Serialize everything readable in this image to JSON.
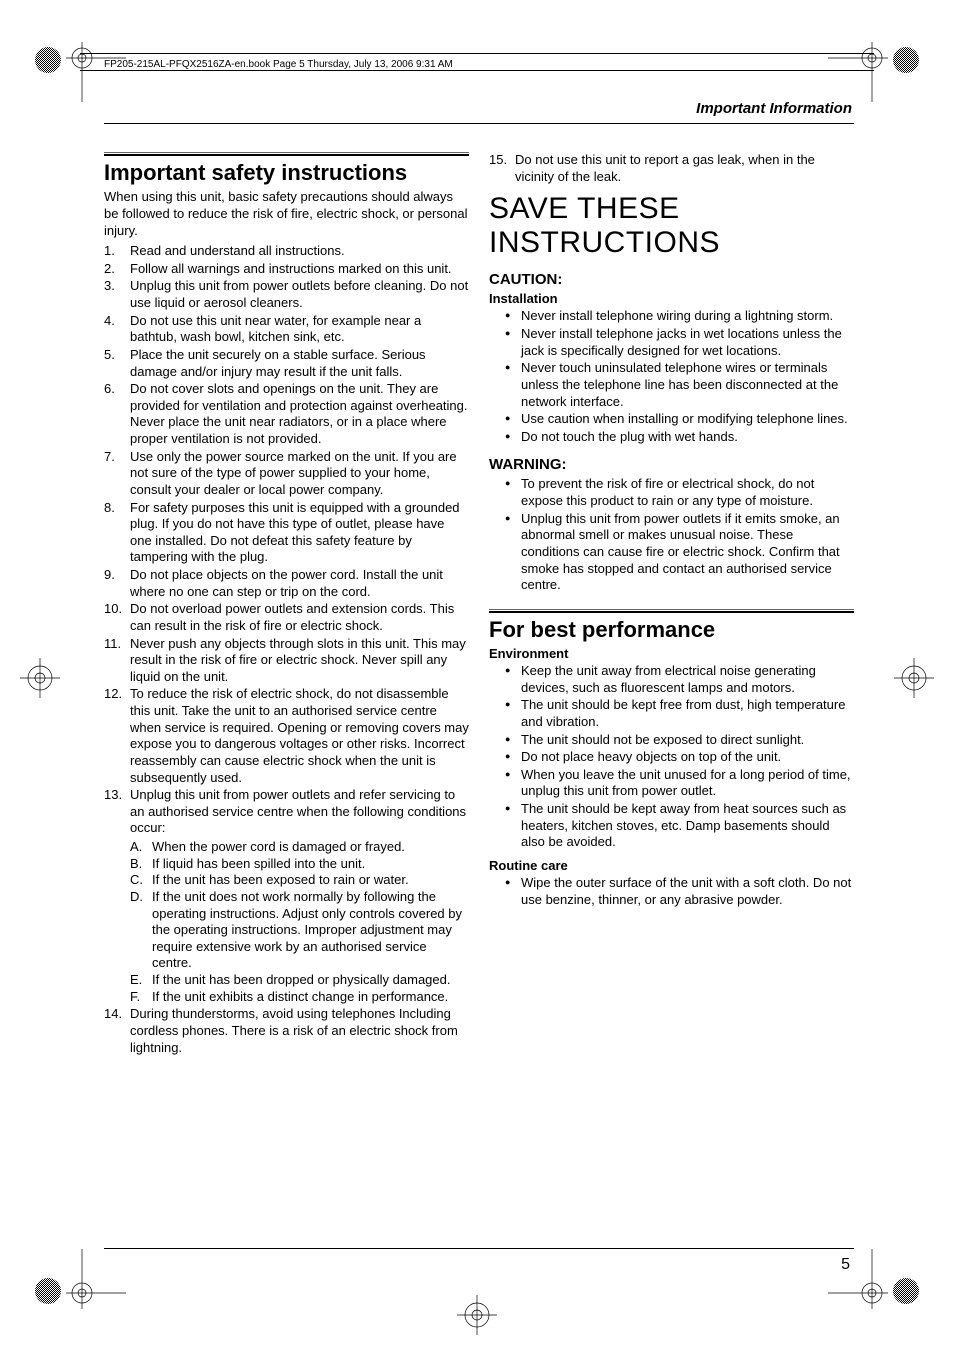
{
  "headerText": "FP205-215AL-PFQX2516ZA-en.book  Page 5  Thursday, July 13, 2006  9:31 AM",
  "pageTitle": "Important Information",
  "pageNumber": "5",
  "left": {
    "title": "Important safety instructions",
    "intro": "When using this unit, basic safety precautions should always be followed to reduce the risk of fire, electric shock, or personal injury.",
    "items": [
      {
        "n": "1.",
        "t": "Read and understand all instructions."
      },
      {
        "n": "2.",
        "t": "Follow all warnings and instructions marked on this unit."
      },
      {
        "n": "3.",
        "t": "Unplug this unit from power outlets before cleaning. Do not use liquid or aerosol cleaners."
      },
      {
        "n": "4.",
        "t": "Do not use this unit near water, for example near a bathtub, wash bowl, kitchen sink, etc."
      },
      {
        "n": "5.",
        "t": "Place the unit securely on a stable surface. Serious damage and/or injury may result if the unit falls."
      },
      {
        "n": "6.",
        "t": "Do not cover slots and openings on the unit. They are provided for ventilation and protection against overheating. Never place the unit near radiators, or in a place where proper ventilation is not provided."
      },
      {
        "n": "7.",
        "t": "Use only the power source marked on the unit. If you are not sure of the type of power supplied to your home, consult your dealer or local power company."
      },
      {
        "n": "8.",
        "t": "For safety purposes this unit is equipped with a grounded plug. If you do not have this type of outlet, please have one installed. Do not defeat this safety feature by tampering with the plug."
      },
      {
        "n": "9.",
        "t": "Do not place objects on the power cord. Install the unit where no one can step or trip on the cord."
      },
      {
        "n": "10.",
        "t": "Do not overload power outlets and extension cords. This can result in the risk of fire or electric shock."
      },
      {
        "n": "11.",
        "t": "Never push any objects through slots in this unit. This may result in the risk of fire or electric shock. Never spill any liquid on the unit."
      },
      {
        "n": "12.",
        "t": "To reduce the risk of electric shock, do not disassemble this unit. Take the unit to an authorised service centre when service is required. Opening or removing covers may expose you to dangerous voltages or other risks. Incorrect reassembly can cause electric shock when the unit is subsequently used."
      },
      {
        "n": "13.",
        "t": "Unplug this unit from power outlets and refer servicing to an authorised service centre when the following conditions occur:",
        "sub": [
          {
            "n": "A.",
            "t": "When the power cord is damaged or frayed."
          },
          {
            "n": "B.",
            "t": "If liquid has been spilled into the unit."
          },
          {
            "n": "C.",
            "t": "If the unit has been exposed to rain or water."
          },
          {
            "n": "D.",
            "t": "If the unit does not work normally by following the operating instructions. Adjust only controls covered by the operating instructions. Improper adjustment may require extensive work by an authorised service centre."
          },
          {
            "n": "E.",
            "t": "If the unit has been dropped or physically damaged."
          },
          {
            "n": "F.",
            "t": "If the unit exhibits a distinct change in performance."
          }
        ]
      },
      {
        "n": "14.",
        "t": "During thunderstorms, avoid using telephones Including cordless phones. There is a risk of an electric shock from lightning."
      }
    ]
  },
  "right": {
    "topItem": {
      "n": "15.",
      "t": "Do not use this unit to report a gas leak, when in the vicinity of the leak."
    },
    "bigTitle": "SAVE THESE INSTRUCTIONS",
    "cautionLabel": "CAUTION:",
    "installLabel": "Installation",
    "installItems": [
      "Never install telephone wiring during a lightning storm.",
      "Never install telephone jacks in wet locations unless the jack is specifically designed for wet locations.",
      "Never touch uninsulated telephone wires or terminals unless the telephone line has been disconnected at the network interface.",
      "Use caution when installing or modifying telephone lines.",
      "Do not touch the plug with wet hands."
    ],
    "warningLabel": "WARNING:",
    "warningItems": [
      "To prevent the risk of fire or electrical shock, do not expose this product to rain or any type of moisture.",
      "Unplug this unit from power outlets if it emits smoke, an abnormal smell or makes unusual noise. These conditions can cause fire or electric shock. Confirm that smoke has stopped and contact an authorised service centre."
    ],
    "perfTitle": "For best performance",
    "envLabel": "Environment",
    "envItems": [
      "Keep the unit away from electrical noise generating devices, such as fluorescent lamps and motors.",
      "The unit should be kept free from dust, high temperature and vibration.",
      "The unit should not be exposed to direct sunlight.",
      "Do not place heavy objects on top of the unit.",
      "When you leave the unit unused for a long period of time, unplug this unit from power outlet.",
      "The unit should be kept away from heat sources such as heaters, kitchen stoves, etc. Damp basements should also be avoided."
    ],
    "careLabel": "Routine care",
    "careItems": [
      "Wipe the outer surface of the unit with a soft cloth. Do not use benzine, thinner, or any abrasive powder."
    ]
  }
}
